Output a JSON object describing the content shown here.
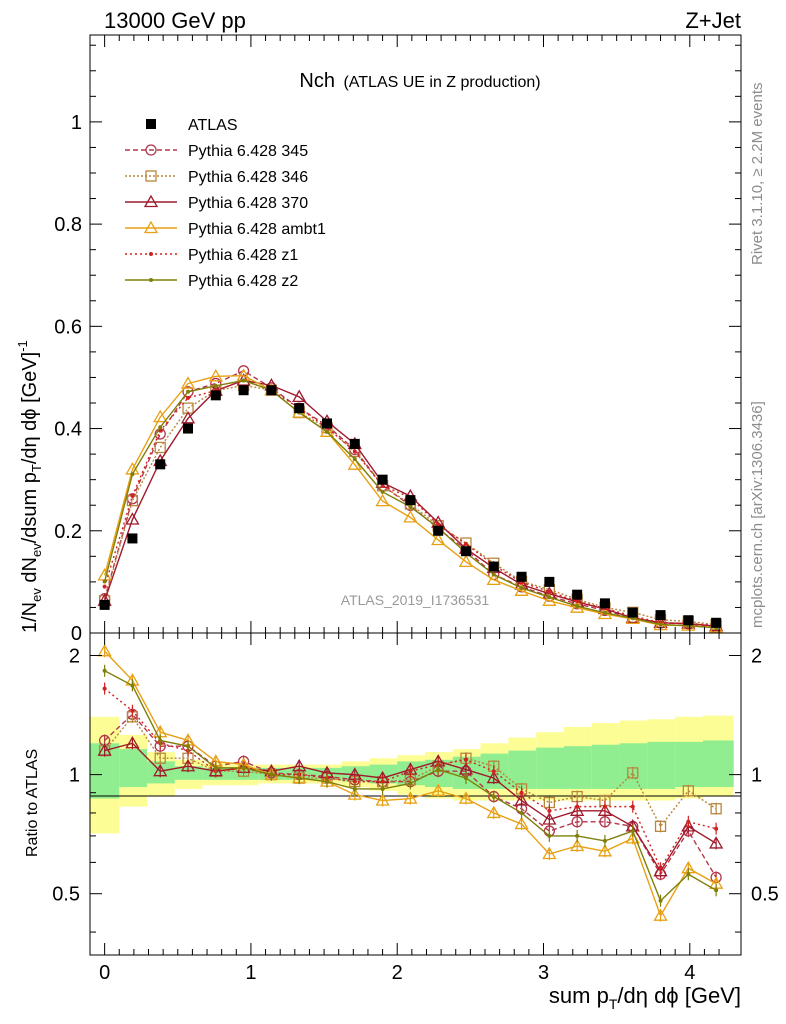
{
  "header": {
    "left": "13000 GeV pp",
    "right": "Z+Jet"
  },
  "side_labels": {
    "rivet": "Rivet 3.1.10, ≥ 2.2M events",
    "mcplots": "mcplots.cern.ch [arXiv:1306.3436]"
  },
  "chart_data": {
    "type": "line",
    "title": "Nch",
    "subtitle": "(ATLAS UE in Z production)",
    "watermark": "ATLAS_2019_I1736531",
    "xlabel": "sum p_T/dη dϕ [GeV]",
    "ylabel": "1/N_ev dN_ev/dsum p_T/dη dϕ [GeV]^-1",
    "ratio_ylabel": "Ratio to ATLAS",
    "xlim": [
      -0.1,
      4.35
    ],
    "ylim": [
      0,
      1.17
    ],
    "ratio_ylim": [
      0.35,
      2.28
    ],
    "x_ticks": [
      "0",
      "1",
      "2",
      "3",
      "4"
    ],
    "y_ticks": [
      "0",
      "0.2",
      "0.4",
      "0.6",
      "0.8",
      "1"
    ],
    "ratio_ticks": [
      "0.5",
      "1",
      "2"
    ],
    "legend_position": "top-left",
    "x": [
      0,
      0.19,
      0.38,
      0.57,
      0.76,
      0.95,
      1.14,
      1.33,
      1.52,
      1.71,
      1.9,
      2.09,
      2.28,
      2.47,
      2.66,
      2.85,
      3.04,
      3.23,
      3.42,
      3.61,
      3.8,
      3.99,
      4.18
    ],
    "band_x": [
      -0.1,
      0.1,
      0.29,
      0.48,
      0.67,
      0.86,
      1.05,
      1.24,
      1.43,
      1.62,
      1.81,
      2.0,
      2.19,
      2.38,
      2.57,
      2.76,
      2.95,
      3.14,
      3.33,
      3.52,
      3.71,
      3.9,
      4.09,
      4.3
    ],
    "band_yellow": [
      [
        0.71,
        1.4
      ],
      [
        0.83,
        1.26
      ],
      [
        0.88,
        1.14
      ],
      [
        0.92,
        1.09
      ],
      [
        0.94,
        1.07
      ],
      [
        0.94,
        1.06
      ],
      [
        0.95,
        1.06
      ],
      [
        0.95,
        1.06
      ],
      [
        0.95,
        1.06
      ],
      [
        0.93,
        1.08
      ],
      [
        0.91,
        1.1
      ],
      [
        0.89,
        1.12
      ],
      [
        0.87,
        1.14
      ],
      [
        0.86,
        1.16
      ],
      [
        0.86,
        1.2
      ],
      [
        0.86,
        1.24
      ],
      [
        0.86,
        1.28
      ],
      [
        0.86,
        1.32
      ],
      [
        0.86,
        1.35
      ],
      [
        0.86,
        1.37
      ],
      [
        0.86,
        1.38
      ],
      [
        0.87,
        1.4
      ],
      [
        0.88,
        1.41
      ]
    ],
    "band_green": [
      [
        0.87,
        1.2
      ],
      [
        0.93,
        1.16
      ],
      [
        0.95,
        1.08
      ],
      [
        0.97,
        1.05
      ],
      [
        0.97,
        1.04
      ],
      [
        0.97,
        1.04
      ],
      [
        0.97,
        1.04
      ],
      [
        0.97,
        1.04
      ],
      [
        0.97,
        1.04
      ],
      [
        0.96,
        1.05
      ],
      [
        0.95,
        1.06
      ],
      [
        0.94,
        1.08
      ],
      [
        0.93,
        1.09
      ],
      [
        0.92,
        1.11
      ],
      [
        0.92,
        1.13
      ],
      [
        0.92,
        1.15
      ],
      [
        0.92,
        1.17
      ],
      [
        0.92,
        1.18
      ],
      [
        0.92,
        1.19
      ],
      [
        0.92,
        1.2
      ],
      [
        0.92,
        1.21
      ],
      [
        0.93,
        1.21
      ],
      [
        0.93,
        1.22
      ]
    ],
    "data": {
      "name": "ATLAS",
      "values": [
        0.055,
        0.185,
        0.33,
        0.4,
        0.465,
        0.475,
        0.475,
        0.44,
        0.41,
        0.37,
        0.3,
        0.26,
        0.2,
        0.16,
        0.13,
        0.11,
        0.1,
        0.075,
        0.058,
        0.04,
        0.035,
        0.025,
        0.02
      ]
    },
    "series": [
      {
        "name": "Pythia 6.428 345",
        "color": "#b4364b",
        "dash": "5,3",
        "marker": "circle",
        "ratio": [
          1.22,
          1.42,
          1.18,
          1.18,
          1.05,
          1.08,
          1.01,
          1.0,
          0.99,
          0.97,
          0.96,
          0.96,
          1.02,
          1.02,
          0.88,
          0.82,
          0.72,
          0.76,
          0.76,
          0.74,
          0.56,
          0.72,
          0.55
        ]
      },
      {
        "name": "Pythia 6.428 346",
        "color": "#b8863b",
        "dash": "2,2",
        "marker": "square",
        "ratio": [
          1.15,
          1.4,
          1.1,
          1.1,
          1.02,
          1.02,
          1.0,
          0.98,
          0.98,
          0.96,
          0.96,
          0.97,
          1.05,
          1.1,
          1.05,
          0.92,
          0.85,
          0.88,
          0.86,
          1.01,
          0.74,
          0.91,
          0.82
        ]
      },
      {
        "name": "Pythia 6.428 370",
        "color": "#9e1a2c",
        "dash": "",
        "marker": "triangle",
        "ratio": [
          1.15,
          1.2,
          1.02,
          1.05,
          1.02,
          1.04,
          1.02,
          1.05,
          1.01,
          1.0,
          0.98,
          1.03,
          1.08,
          1.03,
          0.98,
          0.86,
          0.77,
          0.81,
          0.81,
          0.74,
          0.57,
          0.74,
          0.67
        ]
      },
      {
        "name": "Pythia 6.428 ambt1",
        "color": "#e8a013",
        "dash": "",
        "marker": "triangle",
        "ratio": [
          2.05,
          1.73,
          1.28,
          1.22,
          1.08,
          1.06,
          1.0,
          0.98,
          0.96,
          0.89,
          0.86,
          0.87,
          0.91,
          0.87,
          0.8,
          0.75,
          0.63,
          0.66,
          0.64,
          0.69,
          0.44,
          0.58,
          0.53
        ]
      },
      {
        "name": "Pythia 6.428 z1",
        "color": "#d22121",
        "dash": "2,3",
        "marker": "dot",
        "ratio": [
          1.65,
          1.45,
          1.2,
          1.15,
          1.02,
          1.04,
          1.0,
          1.0,
          0.98,
          0.96,
          0.96,
          1.02,
          1.06,
          1.09,
          1.02,
          0.9,
          0.81,
          0.83,
          0.83,
          0.83,
          0.58,
          0.76,
          0.73
        ]
      },
      {
        "name": "Pythia 6.428 z2",
        "color": "#7f7f0a",
        "dash": "",
        "marker": "dot",
        "ratio": [
          1.83,
          1.68,
          1.22,
          1.18,
          1.04,
          1.04,
          1.0,
          0.98,
          0.96,
          0.92,
          0.92,
          0.95,
          1.03,
          0.98,
          0.88,
          0.8,
          0.7,
          0.7,
          0.68,
          0.72,
          0.48,
          0.56,
          0.51
        ]
      }
    ]
  }
}
